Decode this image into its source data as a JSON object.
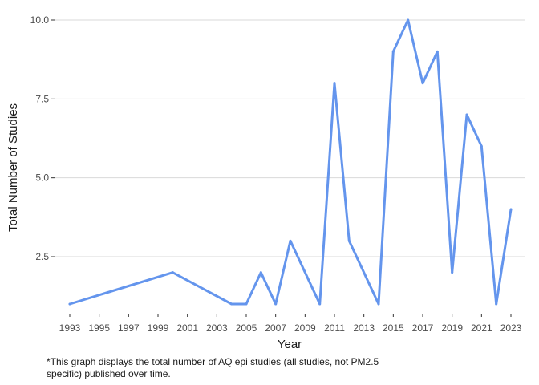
{
  "chart_data": {
    "type": "line",
    "title": "",
    "xlabel": "Year",
    "ylabel": "Total Number of Studies",
    "caption_lines": [
      "*This graph displays the total number of AQ epi studies (all studies, not PM2.5",
      "specific) published over time."
    ],
    "x_tick_labels": [
      "1993",
      "1995",
      "1997",
      "1999",
      "2001",
      "2003",
      "2005",
      "2007",
      "2009",
      "2011",
      "2013",
      "2015",
      "2017",
      "2019",
      "2021",
      "2023"
    ],
    "y_ticks": [
      2.5,
      5.0,
      7.5,
      10.0
    ],
    "y_tick_labels": [
      "2.5",
      "5.0",
      "7.5",
      "10.0"
    ],
    "xlim": [
      1993,
      2023
    ],
    "ylim": [
      1,
      10
    ],
    "grid": "horizontal",
    "legend": "none",
    "series": [
      {
        "color": "#6495ED",
        "x": [
          1993,
          2000,
          2004,
          2005,
          2006,
          2007,
          2008,
          2010,
          2011,
          2012,
          2014,
          2015,
          2016,
          2017,
          2018,
          2019,
          2020,
          2021,
          2022,
          2023
        ],
        "y": [
          1,
          2,
          1,
          1,
          2,
          1,
          3,
          1,
          8,
          3,
          1,
          9,
          10,
          8,
          9,
          2,
          7,
          6,
          1,
          4
        ]
      }
    ]
  }
}
